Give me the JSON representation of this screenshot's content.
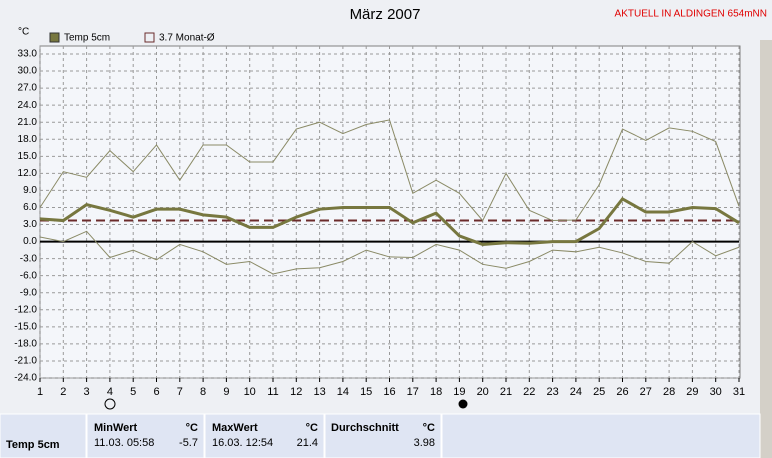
{
  "chart_data": {
    "type": "line",
    "title": "März 2007",
    "annotation": "AKTUELL IN ALDINGEN 654mNN",
    "y_label": "°C",
    "x": [
      1,
      2,
      3,
      4,
      5,
      6,
      7,
      8,
      9,
      10,
      11,
      12,
      13,
      14,
      15,
      16,
      17,
      18,
      19,
      20,
      21,
      22,
      23,
      24,
      25,
      26,
      27,
      28,
      29,
      30,
      31
    ],
    "xlim": [
      1,
      31
    ],
    "xticks": [
      1,
      2,
      3,
      4,
      5,
      6,
      7,
      8,
      9,
      10,
      11,
      12,
      13,
      14,
      15,
      16,
      17,
      18,
      19,
      20,
      21,
      22,
      23,
      24,
      25,
      26,
      27,
      28,
      29,
      30,
      31
    ],
    "ylim": [
      -24,
      33
    ],
    "yticks": [
      {
        "value": 33,
        "label": "33.0"
      },
      {
        "value": 30,
        "label": "30.0"
      },
      {
        "value": 27,
        "label": "27.0"
      },
      {
        "value": 24,
        "label": "24.0"
      },
      {
        "value": 21,
        "label": "21.0"
      },
      {
        "value": 18,
        "label": "18.0"
      },
      {
        "value": 15,
        "label": "15.0"
      },
      {
        "value": 12,
        "label": "12.0"
      },
      {
        "value": 9,
        "label": "9.0"
      },
      {
        "value": 6,
        "label": "6.0"
      },
      {
        "value": 3,
        "label": "3.0"
      },
      {
        "value": 0,
        "label": "0.0"
      },
      {
        "value": -3,
        "label": "-3.0"
      },
      {
        "value": -6,
        "label": "-6.0"
      },
      {
        "value": -9,
        "label": "-9.0"
      },
      {
        "value": -12,
        "label": "-12.0"
      },
      {
        "value": -15,
        "label": "-15.0"
      },
      {
        "value": -18,
        "label": "-18.0"
      },
      {
        "value": -21,
        "label": "-21.0"
      },
      {
        "value": -24,
        "label": "-24.0"
      }
    ],
    "grid": true,
    "series": [
      {
        "name": "Temp 5cm",
        "color": "#77773f",
        "values": [
          4.0,
          3.7,
          6.5,
          5.5,
          4.3,
          5.7,
          5.7,
          4.7,
          4.3,
          2.5,
          2.5,
          4.3,
          5.7,
          6.0,
          6.0,
          6.0,
          3.3,
          5.0,
          1.0,
          -0.5,
          -0.2,
          -0.3,
          0.0,
          0.0,
          2.3,
          7.5,
          5.2,
          5.2,
          6.0,
          5.8,
          3.3
        ]
      },
      {
        "color": "#8a8a66",
        "values": [
          6.0,
          12.3,
          11.3,
          16.0,
          12.3,
          17.0,
          10.8,
          17.0,
          17.0,
          14.0,
          14.0,
          19.8,
          21.0,
          19.0,
          20.6,
          21.4,
          8.5,
          10.8,
          8.5,
          3.7,
          12.0,
          5.5,
          3.7,
          3.8,
          10.0,
          19.8,
          17.8,
          20.0,
          19.4,
          17.6,
          6.2
        ]
      },
      {
        "color": "#8a8a66",
        "values": [
          0.8,
          0.0,
          1.8,
          -2.8,
          -1.5,
          -3.2,
          -0.5,
          -1.8,
          -4.0,
          -3.5,
          -5.7,
          -4.8,
          -4.6,
          -3.5,
          -1.5,
          -2.7,
          -2.8,
          -0.5,
          -1.5,
          -4.0,
          -4.7,
          -3.5,
          -1.5,
          -1.8,
          -1.0,
          -2.0,
          -3.5,
          -3.8,
          0.0,
          -2.5,
          -1.0
        ]
      }
    ],
    "reference": {
      "label": "3.7 Monat-Ø",
      "value": 3.7,
      "color": "#6b2b2b"
    }
  },
  "table": {
    "row_label": "Temp 5cm",
    "columns": [
      {
        "title": "MinWert",
        "unit": "°C",
        "time": "11.03.  05:58",
        "value": -5.7
      },
      {
        "title": "MaxWert",
        "unit": "°C",
        "time": "16.03.  12:54",
        "value": 21.4
      },
      {
        "title": "Durchschnitt",
        "unit": "°C",
        "value": 3.98
      }
    ]
  }
}
